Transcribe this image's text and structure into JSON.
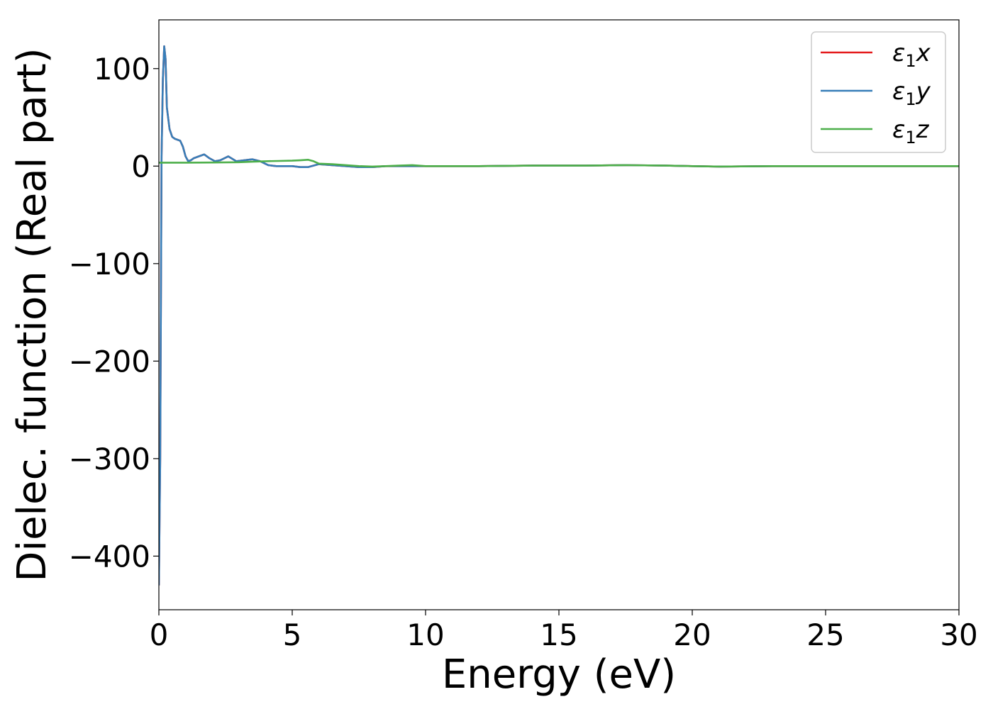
{
  "chart_data": {
    "type": "line",
    "xlabel": "Energy (eV)",
    "ylabel": "Dielec. function (Real part)",
    "xlim": [
      0,
      30
    ],
    "ylim": [
      -455,
      150
    ],
    "xticks": [
      0,
      5,
      10,
      15,
      20,
      25,
      30
    ],
    "xtick_labels": [
      "0",
      "5",
      "10",
      "15",
      "20",
      "25",
      "30"
    ],
    "yticks": [
      -400,
      -300,
      -200,
      -100,
      0,
      100
    ],
    "ytick_labels": [
      "−400",
      "−300",
      "−200",
      "−100",
      "0",
      "100"
    ],
    "grid": false,
    "legend_position": "top-right",
    "series": [
      {
        "name": "ε1x",
        "name_base": "ε",
        "name_sub": "1",
        "name_var": "x",
        "color": "#e41a1c",
        "x": [
          0,
          0.05,
          0.1,
          0.15,
          0.2,
          0.25,
          0.3,
          0.4,
          0.5,
          0.6,
          0.7,
          0.8,
          0.9,
          1.0,
          1.1,
          1.2,
          1.3,
          1.5,
          1.7,
          1.9,
          2.1,
          2.3,
          2.6,
          2.9,
          3.2,
          3.5,
          3.8,
          4.1,
          4.4,
          4.7,
          5.0,
          5.3,
          5.6,
          6.0,
          6.5,
          7.0,
          7.5,
          8.0,
          8.5,
          9.0,
          10,
          12,
          14,
          16,
          17.5,
          19,
          20,
          21,
          23,
          25,
          27,
          30
        ],
        "y": [
          -430,
          -300,
          10,
          90,
          123,
          110,
          60,
          38,
          30,
          28,
          27,
          26,
          20,
          10,
          5,
          6,
          8,
          10,
          12,
          8,
          5,
          6,
          10,
          5,
          6,
          7,
          5,
          1,
          0,
          0,
          0,
          -1,
          -1,
          2,
          1,
          0,
          -1,
          -1,
          0,
          0,
          0,
          0,
          0.5,
          0.5,
          1,
          0.5,
          0,
          -0.5,
          0,
          0,
          0,
          0
        ]
      },
      {
        "name": "ε1y",
        "name_base": "ε",
        "name_sub": "1",
        "name_var": "y",
        "color": "#377eb8",
        "x": [
          0,
          0.05,
          0.1,
          0.15,
          0.2,
          0.25,
          0.3,
          0.4,
          0.5,
          0.6,
          0.7,
          0.8,
          0.9,
          1.0,
          1.1,
          1.2,
          1.3,
          1.5,
          1.7,
          1.9,
          2.1,
          2.3,
          2.6,
          2.9,
          3.2,
          3.5,
          3.8,
          4.1,
          4.4,
          4.7,
          5.0,
          5.3,
          5.6,
          6.0,
          6.5,
          7.0,
          7.5,
          8.0,
          8.5,
          9.0,
          10,
          12,
          14,
          16,
          17.5,
          19,
          20,
          21,
          23,
          25,
          27,
          30
        ],
        "y": [
          -430,
          -300,
          10,
          90,
          123,
          110,
          60,
          38,
          30,
          28,
          27,
          26,
          20,
          10,
          5,
          6,
          8,
          10,
          12,
          8,
          5,
          6,
          10,
          5,
          6,
          7,
          5,
          1,
          0,
          0,
          0,
          -1,
          -1,
          2,
          1,
          0,
          -1,
          -1,
          0,
          0,
          0,
          0,
          0.5,
          0.5,
          1,
          0.5,
          0,
          -0.5,
          0,
          0,
          0,
          0
        ]
      },
      {
        "name": "ε1z",
        "name_base": "ε",
        "name_sub": "1",
        "name_var": "z",
        "color": "#4daf4a",
        "x": [
          0,
          1,
          2,
          3,
          3.5,
          4,
          4.5,
          5,
          5.3,
          5.6,
          5.8,
          6.0,
          6.5,
          7.0,
          7.5,
          8.0,
          8.5,
          9.0,
          9.5,
          10,
          12,
          14,
          16,
          17.5,
          19,
          20,
          21,
          23,
          25,
          27,
          30
        ],
        "y": [
          3.5,
          3.5,
          3.7,
          4.0,
          4.5,
          5.0,
          5.3,
          5.6,
          6,
          6.5,
          5,
          2.5,
          2,
          1,
          0,
          -0.5,
          0,
          0.5,
          1,
          0,
          0,
          0.5,
          0.5,
          1,
          0.5,
          0,
          -0.5,
          0,
          0,
          0,
          0
        ]
      }
    ]
  }
}
